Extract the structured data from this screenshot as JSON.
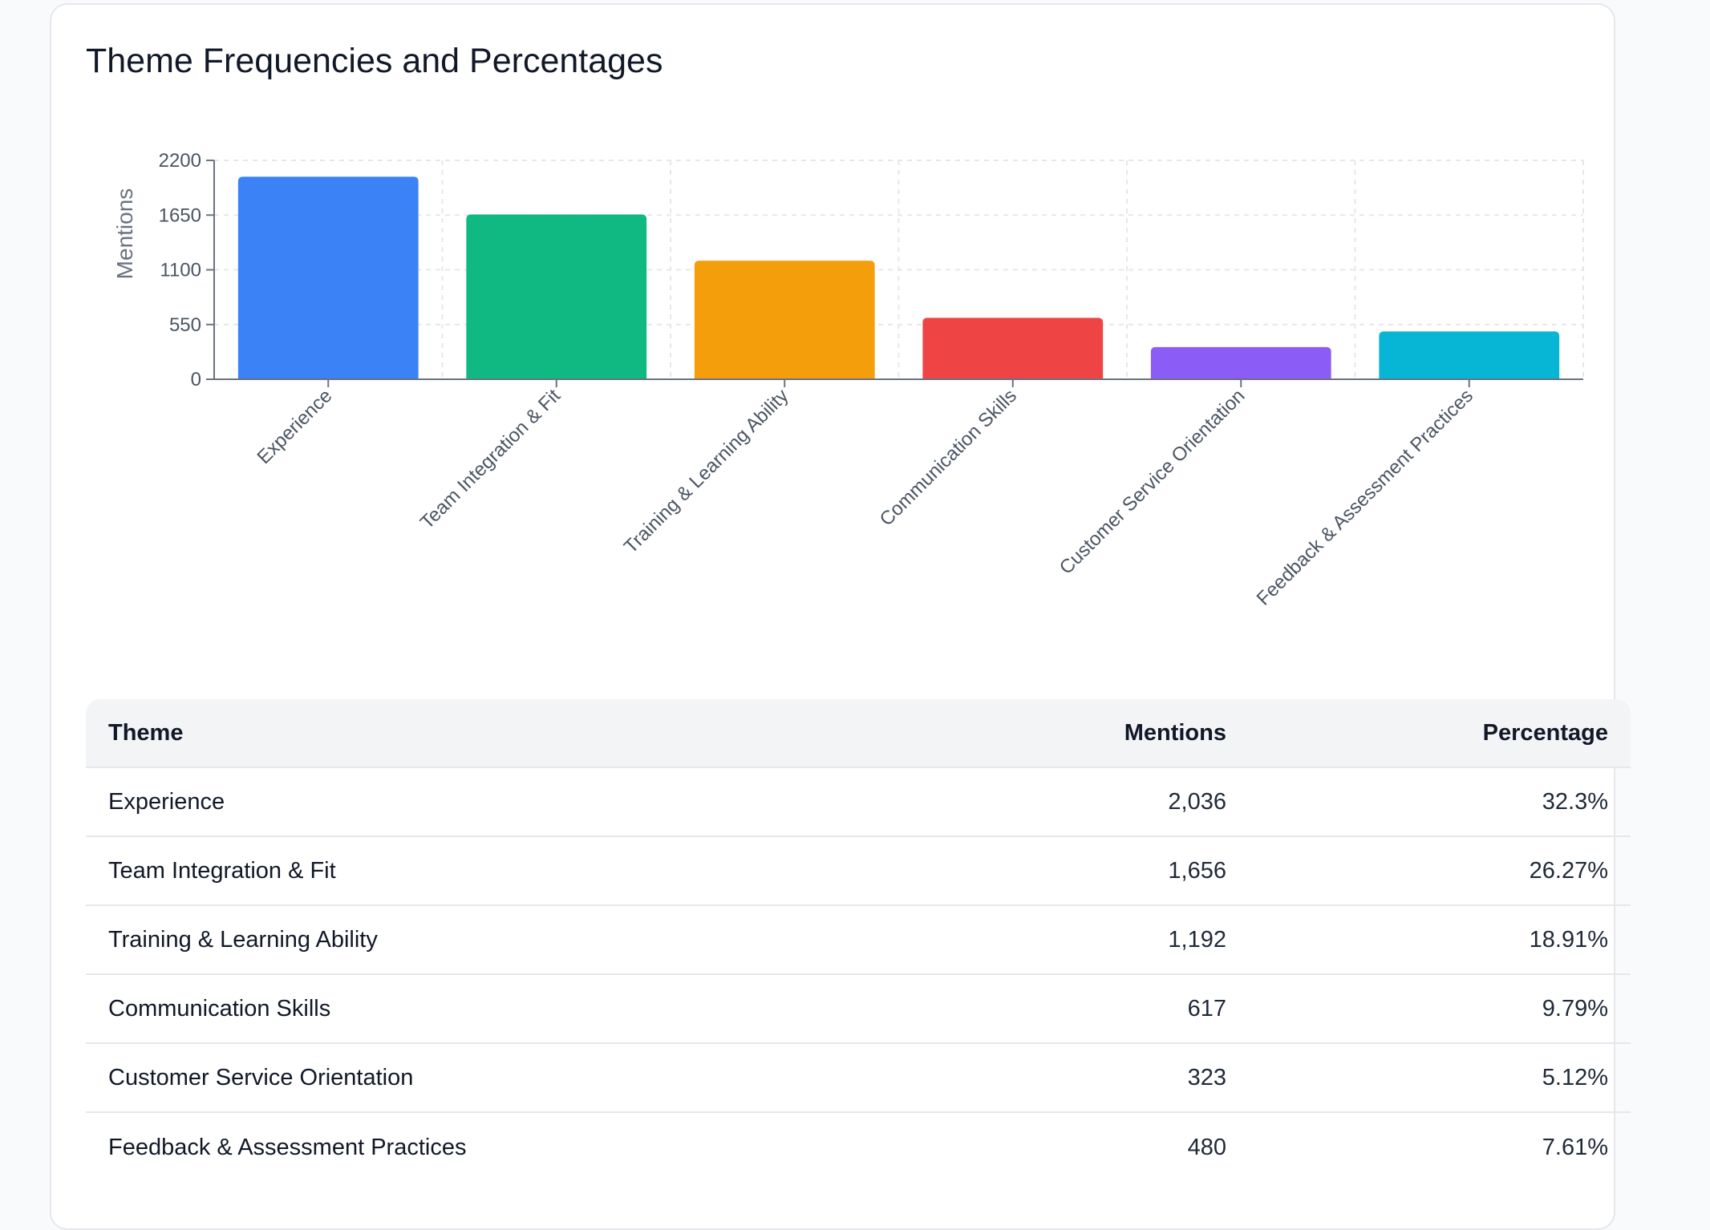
{
  "card": {
    "title": "Theme Frequencies and Percentages"
  },
  "chart_data": {
    "type": "bar",
    "title": "",
    "xlabel": "",
    "ylabel": "Mentions",
    "ylim": [
      0,
      2200
    ],
    "yticks": [
      0,
      550,
      1100,
      1650,
      2200
    ],
    "grid": true,
    "categories": [
      "Experience",
      "Team Integration & Fit",
      "Training & Learning Ability",
      "Communication Skills",
      "Customer Service Orientation",
      "Feedback & Assessment Practices"
    ],
    "values": [
      2036,
      1656,
      1192,
      617,
      323,
      480
    ],
    "colors": [
      "#3b82f6",
      "#10b981",
      "#f59e0b",
      "#ef4444",
      "#8b5cf6",
      "#06b6d4"
    ]
  },
  "table": {
    "headers": {
      "theme": "Theme",
      "mentions": "Mentions",
      "percentage": "Percentage"
    },
    "rows": [
      {
        "theme": "Experience",
        "mentions": "2,036",
        "percentage": "32.3%"
      },
      {
        "theme": "Team Integration & Fit",
        "mentions": "1,656",
        "percentage": "26.27%"
      },
      {
        "theme": "Training & Learning Ability",
        "mentions": "1,192",
        "percentage": "18.91%"
      },
      {
        "theme": "Communication Skills",
        "mentions": "617",
        "percentage": "9.79%"
      },
      {
        "theme": "Customer Service Orientation",
        "mentions": "323",
        "percentage": "5.12%"
      },
      {
        "theme": "Feedback & Assessment Practices",
        "mentions": "480",
        "percentage": "7.61%"
      }
    ]
  }
}
